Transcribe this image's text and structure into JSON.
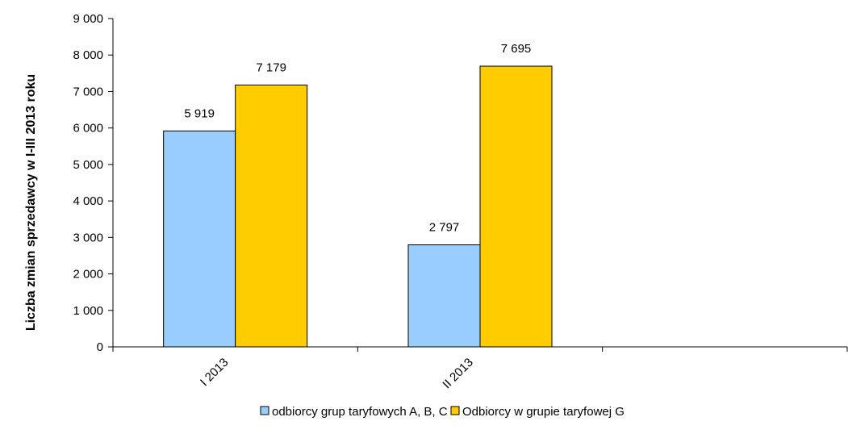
{
  "chart_data": {
    "type": "bar",
    "categories": [
      "I 2013",
      "II 2013",
      ""
    ],
    "series": [
      {
        "name": "odbiorcy grup taryfowych A, B, C",
        "values": [
          5919,
          2797,
          null
        ],
        "labels": [
          "5 919",
          "2 797",
          ""
        ]
      },
      {
        "name": "Odbiorcy w grupie taryfowej G",
        "values": [
          7179,
          7695,
          null
        ],
        "labels": [
          "7 179",
          "7 695",
          ""
        ]
      }
    ],
    "ylabel": "Liczba zmian sprzedawcy w I-III 2013 roku",
    "xlabel": "",
    "ylim": [
      0,
      9000
    ],
    "yticks": [
      0,
      1000,
      2000,
      3000,
      4000,
      5000,
      6000,
      7000,
      8000,
      9000
    ],
    "ytick_labels": [
      "0",
      "1 000",
      "2 000",
      "3 000",
      "4 000",
      "5 000",
      "6 000",
      "7 000",
      "8 000",
      "9 000"
    ],
    "grid": false,
    "legend_position": "bottom",
    "colors": {
      "series_1": "#99ccff",
      "series_2": "#ffcc00",
      "bar_border": "#000000",
      "axis": "#000000"
    }
  }
}
